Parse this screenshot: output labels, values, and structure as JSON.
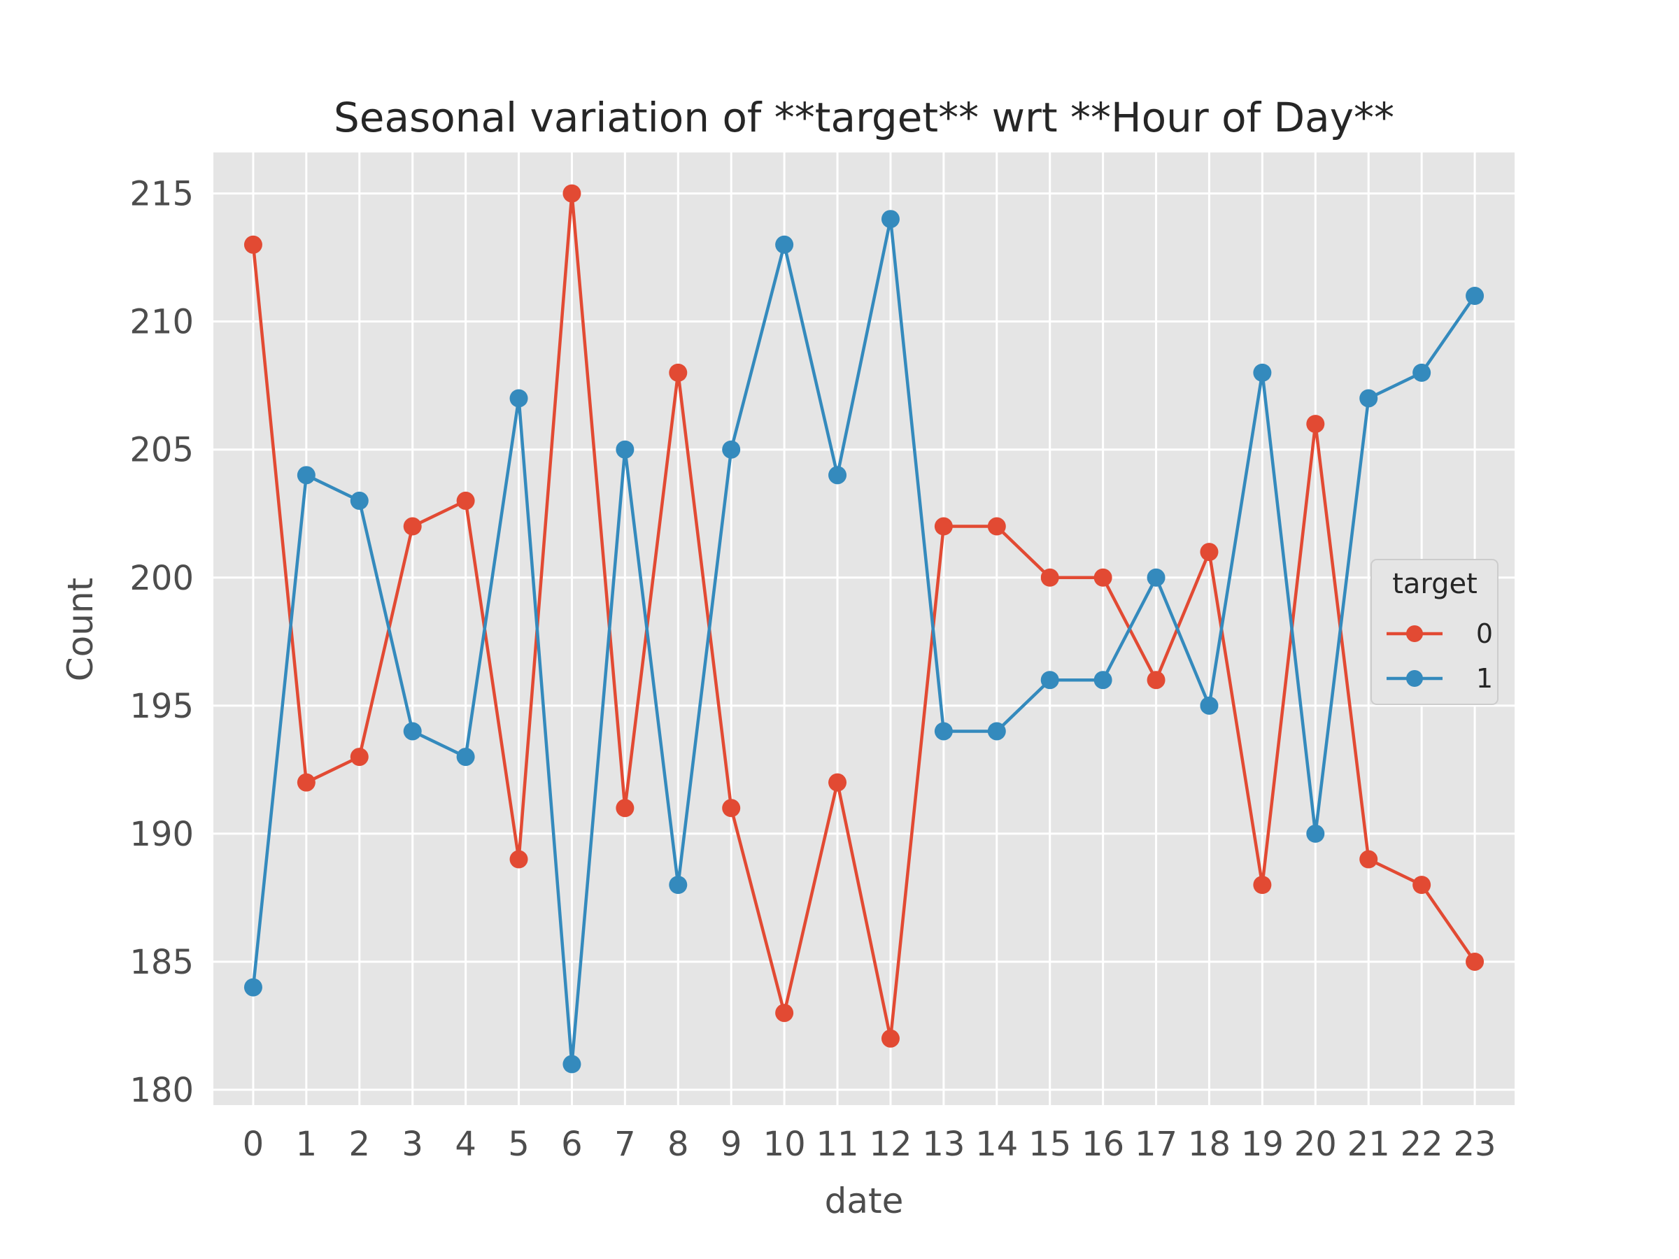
{
  "chart_data": {
    "type": "line",
    "title": "Seasonal variation of **target** wrt **Hour of Day**",
    "xlabel": "date",
    "ylabel": "Count",
    "x": [
      "0",
      "1",
      "2",
      "3",
      "4",
      "5",
      "6",
      "7",
      "8",
      "9",
      "10",
      "11",
      "12",
      "13",
      "14",
      "15",
      "16",
      "17",
      "18",
      "19",
      "20",
      "21",
      "22",
      "23"
    ],
    "ylim": [
      179.4,
      216.6
    ],
    "yticks": [
      180,
      185,
      190,
      195,
      200,
      205,
      210,
      215
    ],
    "grid": true,
    "legend": {
      "title": "target",
      "placement": "center-right"
    },
    "series": [
      {
        "name": "0",
        "color": "#e24a33",
        "values": [
          213,
          192,
          193,
          202,
          203,
          189,
          215,
          191,
          208,
          191,
          183,
          192,
          182,
          202,
          202,
          200,
          200,
          196,
          201,
          188,
          206,
          189,
          188,
          185
        ]
      },
      {
        "name": "1",
        "color": "#348abd",
        "values": [
          184,
          204,
          203,
          194,
          193,
          207,
          181,
          205,
          188,
          205,
          213,
          204,
          214,
          194,
          194,
          196,
          196,
          200,
          195,
          208,
          190,
          207,
          208,
          211
        ]
      }
    ],
    "plot_background": "#e5e5e5",
    "grid_color": "#ffffff"
  }
}
